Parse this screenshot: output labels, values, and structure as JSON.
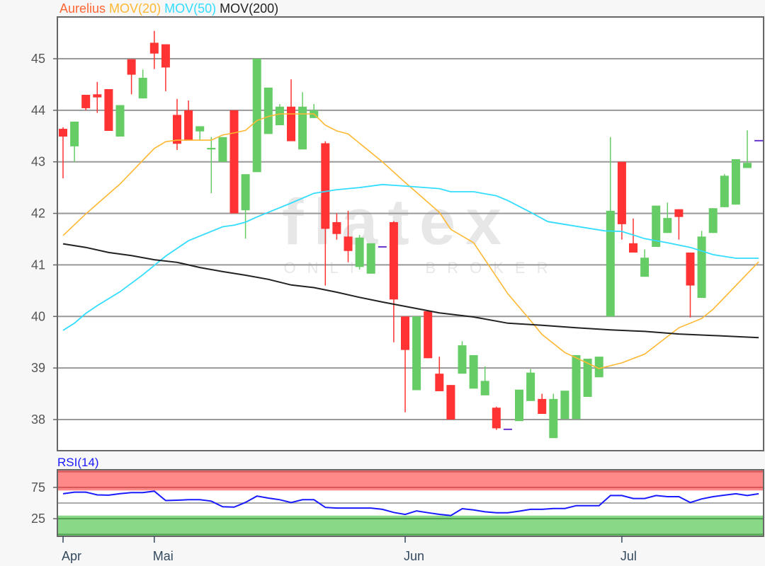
{
  "legend": {
    "instrument": "Aurelius",
    "ma20": "MOV(20)",
    "ma50": "MOV(50)",
    "ma200": "MOV(200)"
  },
  "watermark": {
    "brand": "flatex",
    "tagline": "ONLINE BROKER"
  },
  "colors": {
    "instrument": "#ff6633",
    "ma20": "#ffb833",
    "ma50": "#33ddff",
    "ma200": "#222222",
    "up": "#66cc66",
    "down": "#ff3333",
    "unchanged": "#6633cc",
    "rsi": "#1a1aff",
    "overbought_band": "#ff8888",
    "oversold_band": "#88d888"
  },
  "chart_data": [
    {
      "type": "candlestick",
      "title": "",
      "ylim": [
        37.3,
        45.8
      ],
      "yticks": [
        38,
        39,
        40,
        41,
        42,
        43,
        44,
        45
      ],
      "grid": true,
      "x_ticks": [
        {
          "label": "Apr",
          "index": 0
        },
        {
          "label": "Mai",
          "index": 8
        },
        {
          "label": "Jun",
          "index": 30
        },
        {
          "label": "Jul",
          "index": 49
        }
      ],
      "ohlc": [
        [
          43.64,
          43.67,
          42.68,
          43.49
        ],
        [
          43.3,
          43.78,
          43.0,
          43.78
        ],
        [
          44.3,
          44.3,
          44.0,
          44.04
        ],
        [
          44.31,
          44.55,
          43.95,
          44.25
        ],
        [
          44.41,
          44.41,
          43.6,
          43.6
        ],
        [
          43.49,
          44.1,
          43.49,
          44.1
        ],
        [
          44.99,
          44.99,
          44.31,
          44.69
        ],
        [
          44.23,
          44.79,
          44.23,
          44.63
        ],
        [
          45.31,
          45.54,
          44.8,
          45.1
        ],
        [
          45.28,
          45.28,
          44.37,
          44.83
        ],
        [
          43.91,
          44.22,
          43.23,
          43.35
        ],
        [
          44.0,
          44.19,
          43.41,
          43.41
        ],
        [
          43.59,
          43.69,
          43.42,
          43.69
        ],
        [
          43.24,
          43.48,
          42.39,
          43.27
        ],
        [
          43.0,
          43.48,
          43.0,
          43.48
        ],
        [
          44.0,
          44.0,
          42.0,
          42.0
        ],
        [
          42.06,
          42.76,
          41.51,
          42.76
        ],
        [
          42.8,
          45.0,
          42.8,
          45.0
        ],
        [
          43.54,
          44.44,
          43.54,
          44.44
        ],
        [
          43.71,
          44.12,
          43.71,
          44.07
        ],
        [
          44.07,
          44.6,
          43.4,
          43.4
        ],
        [
          43.24,
          44.35,
          43.24,
          44.07
        ],
        [
          43.85,
          44.12,
          43.85,
          44.0
        ],
        [
          43.36,
          43.4,
          40.6,
          41.7
        ],
        [
          41.83,
          42.0,
          41.49,
          41.6
        ],
        [
          41.55,
          42.05,
          41.05,
          41.27
        ],
        [
          40.96,
          41.58,
          40.91,
          41.53
        ],
        [
          40.83,
          41.42,
          40.83,
          41.42
        ],
        [
          41.35,
          41.35,
          41.35,
          41.35
        ],
        [
          41.83,
          41.85,
          39.5,
          40.33
        ],
        [
          40.0,
          40.0,
          38.14,
          39.35
        ],
        [
          38.57,
          40.0,
          38.57,
          40.0
        ],
        [
          40.1,
          40.1,
          39.19,
          39.19
        ],
        [
          38.89,
          39.22,
          38.55,
          38.55
        ],
        [
          38.67,
          38.67,
          38.0,
          38.0
        ],
        [
          38.89,
          39.52,
          38.89,
          39.44
        ],
        [
          38.6,
          39.25,
          38.6,
          39.25
        ],
        [
          38.47,
          39.03,
          38.47,
          38.75
        ],
        [
          38.23,
          38.25,
          37.8,
          37.83
        ],
        [
          37.81,
          37.81,
          37.81,
          37.81
        ],
        [
          37.97,
          38.58,
          37.97,
          38.58
        ],
        [
          38.36,
          38.98,
          38.36,
          38.91
        ],
        [
          38.4,
          38.5,
          38.11,
          38.11
        ],
        [
          37.64,
          38.5,
          37.64,
          38.4
        ],
        [
          38.01,
          38.56,
          38.01,
          38.56
        ],
        [
          38.01,
          39.25,
          38.01,
          39.25
        ],
        [
          38.44,
          39.18,
          38.44,
          39.18
        ],
        [
          38.82,
          39.22,
          38.82,
          39.22
        ],
        [
          40.0,
          43.48,
          40.0,
          42.05
        ],
        [
          43.0,
          43.0,
          41.49,
          41.79
        ],
        [
          41.42,
          41.9,
          41.24,
          41.24
        ],
        [
          40.77,
          41.3,
          40.77,
          41.14
        ],
        [
          41.35,
          42.15,
          41.35,
          42.15
        ],
        [
          41.62,
          42.21,
          41.62,
          41.91
        ],
        [
          42.08,
          42.08,
          41.49,
          41.93
        ],
        [
          41.24,
          41.24,
          39.98,
          40.6
        ],
        [
          40.36,
          41.66,
          40.36,
          41.55
        ],
        [
          41.62,
          42.1,
          41.62,
          42.1
        ],
        [
          42.12,
          42.76,
          42.12,
          42.73
        ],
        [
          42.17,
          43.05,
          42.17,
          43.05
        ],
        [
          42.88,
          43.61,
          42.88,
          42.98
        ],
        [
          43.41,
          43.41,
          43.41,
          43.41
        ]
      ],
      "series": [
        {
          "name": "MOV(20)",
          "points": [
            [
              0,
              41.57
            ],
            [
              2,
              41.99
            ],
            [
              5,
              42.57
            ],
            [
              8,
              43.26
            ],
            [
              9,
              43.39
            ],
            [
              10,
              43.42
            ],
            [
              13,
              43.42
            ],
            [
              14,
              43.52
            ],
            [
              15,
              43.56
            ],
            [
              16,
              43.61
            ],
            [
              17,
              43.8
            ],
            [
              18,
              43.88
            ],
            [
              19,
              43.93
            ],
            [
              22,
              43.93
            ],
            [
              23,
              43.71
            ],
            [
              24,
              43.6
            ],
            [
              25,
              43.54
            ],
            [
              28,
              43.0
            ],
            [
              30,
              42.6
            ],
            [
              33,
              42.02
            ],
            [
              34,
              41.69
            ],
            [
              36,
              41.43
            ],
            [
              39,
              40.44
            ],
            [
              41,
              39.92
            ],
            [
              42,
              39.65
            ],
            [
              44,
              39.3
            ],
            [
              47,
              38.99
            ],
            [
              49,
              39.1
            ],
            [
              51,
              39.27
            ],
            [
              54,
              39.78
            ],
            [
              56,
              39.96
            ],
            [
              57,
              40.14
            ],
            [
              61,
              41.06
            ]
          ]
        },
        {
          "name": "MOV(50)",
          "points": [
            [
              0,
              39.73
            ],
            [
              1,
              39.87
            ],
            [
              2,
              40.06
            ],
            [
              3,
              40.21
            ],
            [
              5,
              40.48
            ],
            [
              7,
              40.81
            ],
            [
              9,
              41.17
            ],
            [
              11,
              41.47
            ],
            [
              13,
              41.65
            ],
            [
              14,
              41.74
            ],
            [
              15,
              41.77
            ],
            [
              16,
              41.83
            ],
            [
              17,
              41.93
            ],
            [
              18,
              42.02
            ],
            [
              20,
              42.2
            ],
            [
              22,
              42.39
            ],
            [
              24,
              42.46
            ],
            [
              26,
              42.5
            ],
            [
              28,
              42.56
            ],
            [
              30,
              42.53
            ],
            [
              33,
              42.48
            ],
            [
              34,
              42.42
            ],
            [
              36,
              42.42
            ],
            [
              38,
              42.34
            ],
            [
              39,
              42.25
            ],
            [
              41,
              42.02
            ],
            [
              42.5,
              41.84
            ],
            [
              45,
              41.75
            ],
            [
              47.5,
              41.66
            ],
            [
              49,
              41.65
            ],
            [
              51,
              41.51
            ],
            [
              53,
              41.43
            ],
            [
              55,
              41.34
            ],
            [
              57,
              41.2
            ],
            [
              59,
              41.13
            ],
            [
              61,
              41.13
            ]
          ]
        },
        {
          "name": "MOV(200)",
          "points": [
            [
              0,
              41.41
            ],
            [
              2,
              41.34
            ],
            [
              4,
              41.24
            ],
            [
              6,
              41.18
            ],
            [
              8,
              41.1
            ],
            [
              10,
              41.05
            ],
            [
              12,
              40.95
            ],
            [
              14,
              40.87
            ],
            [
              16,
              40.8
            ],
            [
              18,
              40.72
            ],
            [
              20,
              40.61
            ],
            [
              22,
              40.56
            ],
            [
              24,
              40.47
            ],
            [
              26,
              40.37
            ],
            [
              28,
              40.28
            ],
            [
              33,
              40.07
            ],
            [
              36,
              39.99
            ],
            [
              39,
              39.87
            ],
            [
              42,
              39.83
            ],
            [
              45,
              39.78
            ],
            [
              48,
              39.74
            ],
            [
              51,
              39.71
            ],
            [
              54,
              39.66
            ],
            [
              57,
              39.63
            ],
            [
              61,
              39.59
            ]
          ]
        }
      ]
    },
    {
      "type": "line",
      "title": "RSI(14)",
      "ylim": [
        -3,
        103
      ],
      "yticks": [
        75,
        25
      ],
      "reference_lines": [
        100,
        75,
        50,
        25,
        0
      ],
      "overbought_band": [
        70,
        103
      ],
      "oversold_band": [
        -3,
        30
      ],
      "values": [
        64.8,
        67.4,
        67.4,
        63,
        62.5,
        65,
        66.6,
        66.6,
        69,
        54,
        54.5,
        55.3,
        55.3,
        53,
        44,
        43.5,
        51,
        61,
        57.9,
        55.3,
        50.8,
        55.3,
        55.3,
        43,
        42,
        42,
        42,
        42,
        40,
        35,
        31.9,
        37.5,
        34.5,
        32,
        30,
        41,
        39,
        36,
        34.5,
        34.5,
        37,
        40,
        40,
        41.3,
        41.3,
        45.8,
        45.8,
        45.8,
        62,
        62,
        57.2,
        57.2,
        62,
        60.2,
        60.2,
        50.8,
        56.5,
        60.2,
        62.5,
        64.8,
        62,
        64.8
      ]
    }
  ]
}
